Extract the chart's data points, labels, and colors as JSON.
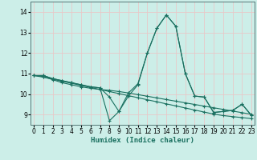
{
  "xlabel": "Humidex (Indice chaleur)",
  "xlim": [
    -0.3,
    23.3
  ],
  "ylim": [
    8.5,
    14.5
  ],
  "yticks": [
    9,
    10,
    11,
    12,
    13,
    14
  ],
  "xticks": [
    0,
    1,
    2,
    3,
    4,
    5,
    6,
    7,
    8,
    9,
    10,
    11,
    12,
    13,
    14,
    15,
    16,
    17,
    18,
    19,
    20,
    21,
    22,
    23
  ],
  "bg_color": "#cceee8",
  "grid_color": "#e8c8c8",
  "line_color": "#1a7060",
  "lines": [
    [
      10.9,
      10.9,
      10.75,
      10.65,
      10.55,
      10.45,
      10.35,
      10.3,
      9.85,
      9.15,
      10.05,
      10.5,
      12.0,
      13.2,
      13.85,
      13.3,
      11.0,
      9.9,
      9.85,
      9.1,
      9.15,
      9.2,
      9.5,
      8.95
    ],
    [
      10.9,
      10.9,
      10.75,
      10.65,
      10.55,
      10.45,
      10.35,
      10.3,
      8.7,
      9.15,
      9.9,
      10.45,
      12.0,
      13.2,
      13.85,
      13.3,
      11.0,
      9.9,
      9.85,
      9.1,
      9.15,
      9.2,
      9.5,
      8.95
    ],
    [
      10.9,
      10.85,
      10.7,
      10.55,
      10.45,
      10.35,
      10.28,
      10.22,
      10.18,
      10.12,
      10.05,
      9.97,
      9.89,
      9.81,
      9.73,
      9.65,
      9.57,
      9.49,
      9.41,
      9.33,
      9.25,
      9.17,
      9.09,
      9.01
    ],
    [
      10.9,
      10.82,
      10.72,
      10.62,
      10.52,
      10.42,
      10.32,
      10.22,
      10.12,
      10.02,
      9.92,
      9.82,
      9.72,
      9.62,
      9.52,
      9.42,
      9.32,
      9.22,
      9.12,
      9.02,
      8.95,
      8.9,
      8.85,
      8.8
    ]
  ]
}
